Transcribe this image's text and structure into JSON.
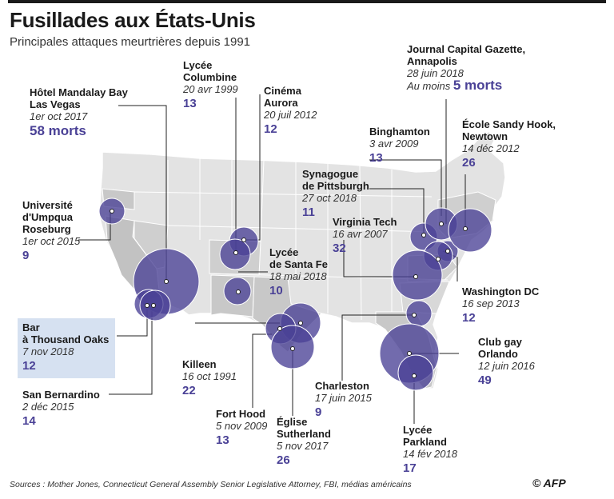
{
  "title": "Fusillades aux États-Unis",
  "subtitle": "Principales attaques meurtrières depuis 1991",
  "source": "Sources : Mother Jones, Connecticut General Assembly Senior Legislative Attorney, FBI, médias américains",
  "logo": "© AFP",
  "colors": {
    "bubble": "#4a4196",
    "count": "#4a4196",
    "state_grey": "#d4d4d4",
    "state_dark": "#bdbdbd",
    "highlight": "#d6e1f1"
  },
  "events": [
    {
      "id": "mandalay",
      "name": [
        "Hôtel Mandalay Bay",
        "Las Vegas"
      ],
      "date": "1er oct 2017",
      "count": "58 morts",
      "deaths": 58
    },
    {
      "id": "columbine",
      "name": [
        "Lycée",
        "Columbine"
      ],
      "date": "20 avr 1999",
      "count": "13",
      "deaths": 13
    },
    {
      "id": "aurora",
      "name": [
        "Cinéma",
        "Aurora"
      ],
      "date": "20 juil 2012",
      "count": "12",
      "deaths": 12
    },
    {
      "id": "annapolis",
      "name": [
        "Journal Capital Gazette,",
        "Annapolis"
      ],
      "date": "28 juin 2018",
      "prefix": "Au moins",
      "count": "5 morts",
      "deaths": 5
    },
    {
      "id": "binghamton",
      "name": [
        "Binghamton"
      ],
      "date": "3 avr 2009",
      "count": "13",
      "deaths": 13
    },
    {
      "id": "sandyhook",
      "name": [
        "École Sandy Hook,",
        "Newtown"
      ],
      "date": "14 déc 2012",
      "count": "26",
      "deaths": 26
    },
    {
      "id": "pittsburgh",
      "name": [
        "Synagogue",
        "de Pittsburgh"
      ],
      "date": "27 oct 2018",
      "count": "11",
      "deaths": 11
    },
    {
      "id": "virginiatech",
      "name": [
        "Virginia Tech"
      ],
      "date": "16 avr 2007",
      "count": "32",
      "deaths": 32
    },
    {
      "id": "umpqua",
      "name": [
        "Université",
        "d'Umpqua",
        "Roseburg"
      ],
      "date": "1er oct 2015",
      "count": "9",
      "deaths": 9
    },
    {
      "id": "santafe",
      "name": [
        "Lycée",
        "de Santa Fe"
      ],
      "date": "18 mai 2018",
      "count": "10",
      "deaths": 10
    },
    {
      "id": "washington",
      "name": [
        "Washington DC"
      ],
      "date": "16 sep 2013",
      "count": "12",
      "deaths": 12
    },
    {
      "id": "thousandoaks",
      "name": [
        "Bar",
        "à Thousand Oaks"
      ],
      "date": "7 nov 2018",
      "count": "12",
      "deaths": 12
    },
    {
      "id": "killeen",
      "name": [
        "Killeen"
      ],
      "date": "16 oct 1991",
      "count": "22",
      "deaths": 22
    },
    {
      "id": "orlando",
      "name": [
        "Club gay",
        "Orlando"
      ],
      "date": "12 juin 2016",
      "count": "49",
      "deaths": 49
    },
    {
      "id": "sanbernardino",
      "name": [
        "San Bernardino"
      ],
      "date": "2 déc 2015",
      "count": "14",
      "deaths": 14
    },
    {
      "id": "charleston",
      "name": [
        "Charleston"
      ],
      "date": "17 juin 2015",
      "count": "9",
      "deaths": 9
    },
    {
      "id": "forthood",
      "name": [
        "Fort Hood"
      ],
      "date": "5 nov 2009",
      "count": "13",
      "deaths": 13
    },
    {
      "id": "sutherland",
      "name": [
        "Église",
        "Sutherland"
      ],
      "date": "5 nov 2017",
      "count": "26",
      "deaths": 26
    },
    {
      "id": "parkland",
      "name": [
        "Lycée",
        "Parkland"
      ],
      "date": "14 fév 2018",
      "count": "17",
      "deaths": 17
    }
  ]
}
